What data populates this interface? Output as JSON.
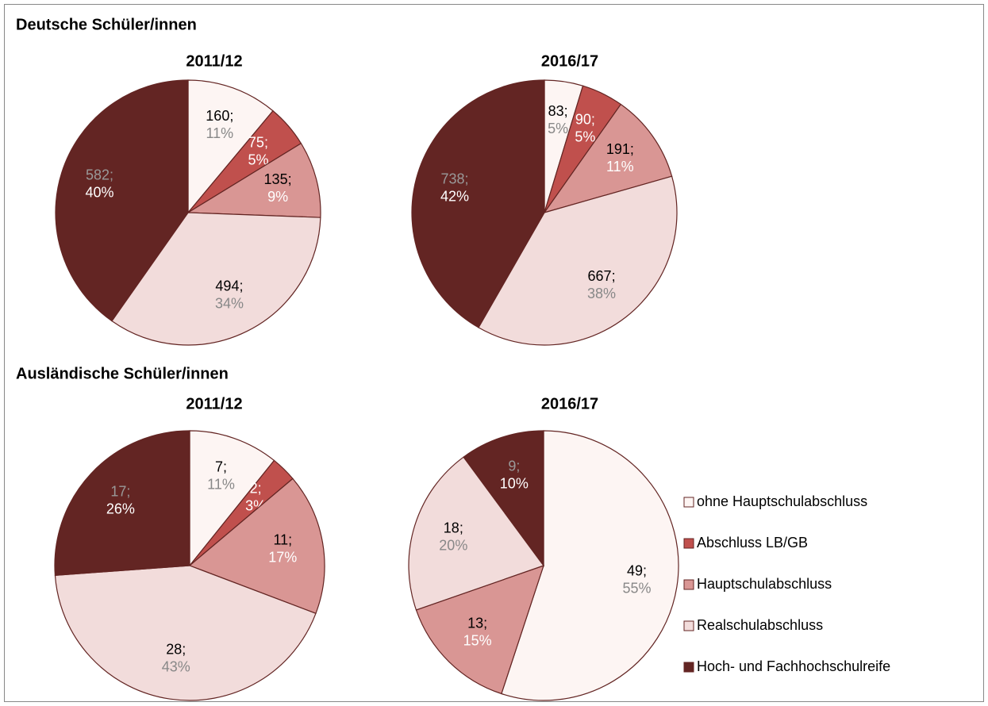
{
  "groups": [
    "Deutsche Schüler/innen",
    "Ausländische Schüler/innen"
  ],
  "legend": {
    "labels": [
      "ohne Hauptschulabschluss",
      "Abschluss LB/GB",
      "Hauptschulabschluss",
      "Realschulabschluss",
      "Hoch- und Fachhochschulreife"
    ],
    "colors": [
      "#fdf5f3",
      "#c0504d",
      "#d99694",
      "#f2dcdb",
      "#632523"
    ]
  },
  "chart_data": [
    {
      "type": "pie",
      "title": "2011/12",
      "values": [
        160,
        75,
        135,
        494,
        582
      ],
      "value_labels": [
        "160;",
        "75;",
        "135;",
        "494;",
        "582;"
      ],
      "shares": [
        11,
        5,
        9,
        34,
        40
      ],
      "share_labels": [
        "11%",
        "5%",
        "9%",
        "34%",
        "40%"
      ]
    },
    {
      "type": "pie",
      "title": "2016/17",
      "values": [
        83,
        90,
        191,
        667,
        738
      ],
      "value_labels": [
        "83;",
        "90;",
        "191;",
        "667;",
        "738;"
      ],
      "shares": [
        5,
        5,
        11,
        38,
        42
      ],
      "share_labels": [
        "5%",
        "5%",
        "11%",
        "38%",
        "42%"
      ]
    },
    {
      "type": "pie",
      "title": "2011/12",
      "values": [
        7,
        2,
        11,
        28,
        17
      ],
      "value_labels": [
        "7;",
        "2;",
        "11;",
        "28;",
        "17;"
      ],
      "shares": [
        11,
        3,
        17,
        43,
        26
      ],
      "share_labels": [
        "11%",
        "3%",
        "17%",
        "43%",
        "26%"
      ]
    },
    {
      "type": "pie",
      "title": "2016/17",
      "values": [
        49,
        null,
        13,
        18,
        9
      ],
      "value_labels": [
        "49;",
        null,
        "13;",
        "18;",
        "9;"
      ],
      "shares": [
        55,
        null,
        15,
        20,
        10
      ],
      "share_labels": [
        "55%",
        null,
        "15%",
        "20%",
        "10%"
      ]
    }
  ]
}
